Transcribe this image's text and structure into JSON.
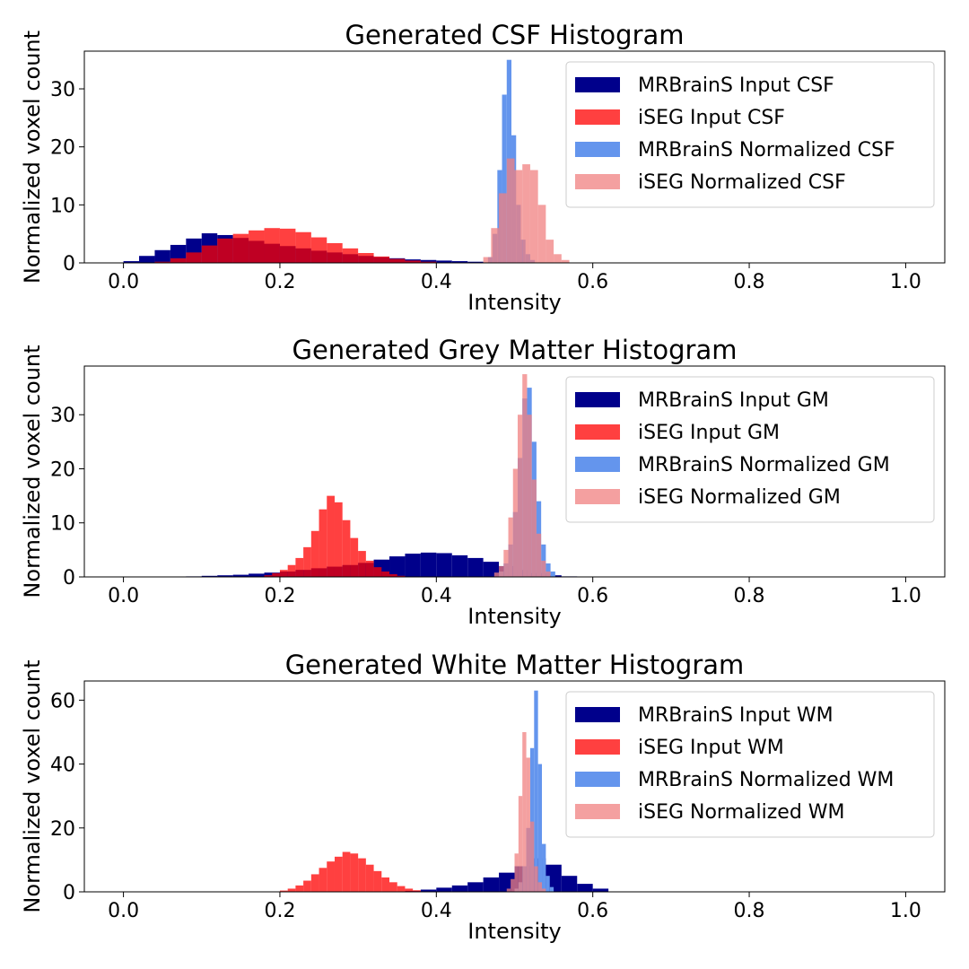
{
  "chart_data": [
    {
      "type": "histogram",
      "title": "Generated CSF Histogram",
      "xlabel": "Intensity",
      "ylabel": "Normalized voxel count",
      "xlim": [
        -0.05,
        1.05
      ],
      "ylim": [
        0,
        36.5
      ],
      "xticks": [
        0.0,
        0.2,
        0.4,
        0.6,
        0.8,
        1.0
      ],
      "xtick_labels": [
        "0.0",
        "0.2",
        "0.4",
        "0.6",
        "0.8",
        "1.0"
      ],
      "yticks": [
        0,
        10,
        20,
        30
      ],
      "ytick_labels": [
        "0",
        "10",
        "20",
        "30"
      ],
      "legend_position": "upper right",
      "grid": false,
      "series": [
        {
          "name": "MRBrainS Input CSF",
          "color": "#00008b",
          "opacity": 1.0,
          "bins": [
            {
              "x": 0.0,
              "y": 0.3
            },
            {
              "x": 0.02,
              "y": 1.2
            },
            {
              "x": 0.04,
              "y": 2.2
            },
            {
              "x": 0.06,
              "y": 3.1
            },
            {
              "x": 0.08,
              "y": 4.2
            },
            {
              "x": 0.1,
              "y": 5.1
            },
            {
              "x": 0.12,
              "y": 4.8
            },
            {
              "x": 0.14,
              "y": 4.3
            },
            {
              "x": 0.16,
              "y": 3.8
            },
            {
              "x": 0.18,
              "y": 3.3
            },
            {
              "x": 0.2,
              "y": 2.9
            },
            {
              "x": 0.22,
              "y": 2.5
            },
            {
              "x": 0.24,
              "y": 2.1
            },
            {
              "x": 0.26,
              "y": 1.8
            },
            {
              "x": 0.28,
              "y": 1.5
            },
            {
              "x": 0.3,
              "y": 1.2
            },
            {
              "x": 0.32,
              "y": 1.0
            },
            {
              "x": 0.34,
              "y": 0.8
            },
            {
              "x": 0.36,
              "y": 0.6
            },
            {
              "x": 0.38,
              "y": 0.5
            },
            {
              "x": 0.4,
              "y": 0.4
            },
            {
              "x": 0.42,
              "y": 0.3
            },
            {
              "x": 0.44,
              "y": 0.2
            }
          ]
        },
        {
          "name": "iSEG Input CSF",
          "color": "#ff0000",
          "opacity": 0.75,
          "bins": [
            {
              "x": 0.04,
              "y": 0.2
            },
            {
              "x": 0.06,
              "y": 0.8
            },
            {
              "x": 0.08,
              "y": 1.8
            },
            {
              "x": 0.1,
              "y": 3.0
            },
            {
              "x": 0.12,
              "y": 4.2
            },
            {
              "x": 0.14,
              "y": 5.0
            },
            {
              "x": 0.16,
              "y": 5.6
            },
            {
              "x": 0.18,
              "y": 6.0
            },
            {
              "x": 0.2,
              "y": 5.9
            },
            {
              "x": 0.22,
              "y": 5.3
            },
            {
              "x": 0.24,
              "y": 4.4
            },
            {
              "x": 0.26,
              "y": 3.4
            },
            {
              "x": 0.28,
              "y": 2.5
            },
            {
              "x": 0.3,
              "y": 1.7
            },
            {
              "x": 0.32,
              "y": 1.1
            },
            {
              "x": 0.34,
              "y": 0.7
            },
            {
              "x": 0.36,
              "y": 0.4
            },
            {
              "x": 0.38,
              "y": 0.2
            }
          ]
        },
        {
          "name": "MRBrainS Normalized CSF",
          "color": "#6495ed",
          "opacity": 1.0,
          "bins": [
            {
              "x": 0.466,
              "y": 1.0
            },
            {
              "x": 0.472,
              "y": 5.0
            },
            {
              "x": 0.478,
              "y": 16.0
            },
            {
              "x": 0.484,
              "y": 29.0
            },
            {
              "x": 0.49,
              "y": 35.0
            },
            {
              "x": 0.496,
              "y": 22.0
            },
            {
              "x": 0.502,
              "y": 10.0
            },
            {
              "x": 0.508,
              "y": 4.0
            },
            {
              "x": 0.514,
              "y": 1.5
            },
            {
              "x": 0.52,
              "y": 0.5
            }
          ]
        },
        {
          "name": "iSEG Normalized CSF",
          "color": "#f08080",
          "opacity": 0.75,
          "bins": [
            {
              "x": 0.46,
              "y": 1.0
            },
            {
              "x": 0.47,
              "y": 6.0
            },
            {
              "x": 0.48,
              "y": 12.0
            },
            {
              "x": 0.49,
              "y": 18.0
            },
            {
              "x": 0.5,
              "y": 16.0
            },
            {
              "x": 0.51,
              "y": 17.0
            },
            {
              "x": 0.52,
              "y": 16.0
            },
            {
              "x": 0.53,
              "y": 10.0
            },
            {
              "x": 0.54,
              "y": 4.0
            },
            {
              "x": 0.55,
              "y": 1.5
            },
            {
              "x": 0.56,
              "y": 0.5
            }
          ]
        }
      ]
    },
    {
      "type": "histogram",
      "title": "Generated Grey Matter Histogram",
      "xlabel": "Intensity",
      "ylabel": "Normalized voxel count",
      "xlim": [
        -0.05,
        1.05
      ],
      "ylim": [
        0,
        39.0
      ],
      "xticks": [
        0.0,
        0.2,
        0.4,
        0.6,
        0.8,
        1.0
      ],
      "xtick_labels": [
        "0.0",
        "0.2",
        "0.4",
        "0.6",
        "0.8",
        "1.0"
      ],
      "yticks": [
        0,
        10,
        20,
        30
      ],
      "ytick_labels": [
        "0",
        "10",
        "20",
        "30"
      ],
      "legend_position": "upper right",
      "grid": false,
      "series": [
        {
          "name": "MRBrainS Input GM",
          "color": "#00008b",
          "opacity": 1.0,
          "bins": [
            {
              "x": 0.08,
              "y": 0.1
            },
            {
              "x": 0.1,
              "y": 0.2
            },
            {
              "x": 0.12,
              "y": 0.3
            },
            {
              "x": 0.14,
              "y": 0.4
            },
            {
              "x": 0.16,
              "y": 0.6
            },
            {
              "x": 0.18,
              "y": 0.8
            },
            {
              "x": 0.2,
              "y": 1.0
            },
            {
              "x": 0.22,
              "y": 1.3
            },
            {
              "x": 0.24,
              "y": 1.6
            },
            {
              "x": 0.26,
              "y": 1.9
            },
            {
              "x": 0.28,
              "y": 2.2
            },
            {
              "x": 0.3,
              "y": 2.6
            },
            {
              "x": 0.32,
              "y": 3.2
            },
            {
              "x": 0.34,
              "y": 3.8
            },
            {
              "x": 0.36,
              "y": 4.3
            },
            {
              "x": 0.38,
              "y": 4.5
            },
            {
              "x": 0.4,
              "y": 4.4
            },
            {
              "x": 0.42,
              "y": 4.0
            },
            {
              "x": 0.44,
              "y": 3.5
            },
            {
              "x": 0.46,
              "y": 2.8
            },
            {
              "x": 0.48,
              "y": 2.0
            },
            {
              "x": 0.5,
              "y": 1.3
            },
            {
              "x": 0.52,
              "y": 0.7
            },
            {
              "x": 0.54,
              "y": 0.3
            },
            {
              "x": 0.56,
              "y": 0.1
            }
          ]
        },
        {
          "name": "iSEG Input GM",
          "color": "#ff0000",
          "opacity": 0.75,
          "bins": [
            {
              "x": 0.18,
              "y": 0.3
            },
            {
              "x": 0.19,
              "y": 0.7
            },
            {
              "x": 0.2,
              "y": 1.3
            },
            {
              "x": 0.21,
              "y": 2.2
            },
            {
              "x": 0.22,
              "y": 3.5
            },
            {
              "x": 0.23,
              "y": 5.5
            },
            {
              "x": 0.24,
              "y": 8.5
            },
            {
              "x": 0.25,
              "y": 12.5
            },
            {
              "x": 0.26,
              "y": 15.0
            },
            {
              "x": 0.27,
              "y": 13.8
            },
            {
              "x": 0.28,
              "y": 10.5
            },
            {
              "x": 0.29,
              "y": 7.2
            },
            {
              "x": 0.3,
              "y": 4.8
            },
            {
              "x": 0.31,
              "y": 3.0
            },
            {
              "x": 0.32,
              "y": 1.8
            },
            {
              "x": 0.33,
              "y": 1.0
            },
            {
              "x": 0.34,
              "y": 0.5
            },
            {
              "x": 0.35,
              "y": 0.2
            }
          ]
        },
        {
          "name": "MRBrainS Normalized GM",
          "color": "#6495ed",
          "opacity": 1.0,
          "bins": [
            {
              "x": 0.48,
              "y": 1.0
            },
            {
              "x": 0.486,
              "y": 2.5
            },
            {
              "x": 0.492,
              "y": 6.0
            },
            {
              "x": 0.498,
              "y": 12.0
            },
            {
              "x": 0.504,
              "y": 22.0
            },
            {
              "x": 0.51,
              "y": 33.0
            },
            {
              "x": 0.516,
              "y": 35.0
            },
            {
              "x": 0.522,
              "y": 25.0
            },
            {
              "x": 0.528,
              "y": 14.0
            },
            {
              "x": 0.534,
              "y": 6.0
            },
            {
              "x": 0.54,
              "y": 2.5
            },
            {
              "x": 0.546,
              "y": 1.0
            }
          ]
        },
        {
          "name": "iSEG Normalized GM",
          "color": "#f08080",
          "opacity": 0.75,
          "bins": [
            {
              "x": 0.474,
              "y": 0.8
            },
            {
              "x": 0.48,
              "y": 2.0
            },
            {
              "x": 0.486,
              "y": 5.0
            },
            {
              "x": 0.492,
              "y": 11.0
            },
            {
              "x": 0.498,
              "y": 20.0
            },
            {
              "x": 0.504,
              "y": 30.0
            },
            {
              "x": 0.51,
              "y": 37.5
            },
            {
              "x": 0.516,
              "y": 30.0
            },
            {
              "x": 0.522,
              "y": 18.0
            },
            {
              "x": 0.528,
              "y": 8.0
            },
            {
              "x": 0.534,
              "y": 3.0
            },
            {
              "x": 0.54,
              "y": 1.0
            }
          ]
        }
      ]
    },
    {
      "type": "histogram",
      "title": "Generated White Matter Histogram",
      "xlabel": "Intensity",
      "ylabel": "Normalized voxel count",
      "xlim": [
        -0.05,
        1.05
      ],
      "ylim": [
        0,
        66.0
      ],
      "xticks": [
        0.0,
        0.2,
        0.4,
        0.6,
        0.8,
        1.0
      ],
      "xtick_labels": [
        "0.0",
        "0.2",
        "0.4",
        "0.6",
        "0.8",
        "1.0"
      ],
      "yticks": [
        0,
        20,
        40,
        60
      ],
      "ytick_labels": [
        "0",
        "20",
        "40",
        "60"
      ],
      "legend_position": "upper right",
      "grid": false,
      "series": [
        {
          "name": "MRBrainS Input WM",
          "color": "#00008b",
          "opacity": 1.0,
          "bins": [
            {
              "x": 0.36,
              "y": 0.3
            },
            {
              "x": 0.38,
              "y": 0.7
            },
            {
              "x": 0.4,
              "y": 1.3
            },
            {
              "x": 0.42,
              "y": 2.0
            },
            {
              "x": 0.44,
              "y": 3.0
            },
            {
              "x": 0.46,
              "y": 4.5
            },
            {
              "x": 0.48,
              "y": 6.0
            },
            {
              "x": 0.5,
              "y": 8.0
            },
            {
              "x": 0.52,
              "y": 10.5
            },
            {
              "x": 0.54,
              "y": 8.5
            },
            {
              "x": 0.56,
              "y": 5.0
            },
            {
              "x": 0.58,
              "y": 2.5
            },
            {
              "x": 0.6,
              "y": 1.0
            }
          ]
        },
        {
          "name": "iSEG Input WM",
          "color": "#ff0000",
          "opacity": 0.75,
          "bins": [
            {
              "x": 0.2,
              "y": 0.4
            },
            {
              "x": 0.21,
              "y": 1.0
            },
            {
              "x": 0.22,
              "y": 2.0
            },
            {
              "x": 0.23,
              "y": 3.5
            },
            {
              "x": 0.24,
              "y": 5.5
            },
            {
              "x": 0.25,
              "y": 7.5
            },
            {
              "x": 0.26,
              "y": 9.5
            },
            {
              "x": 0.27,
              "y": 11.0
            },
            {
              "x": 0.28,
              "y": 12.5
            },
            {
              "x": 0.29,
              "y": 12.0
            },
            {
              "x": 0.3,
              "y": 10.5
            },
            {
              "x": 0.31,
              "y": 8.5
            },
            {
              "x": 0.32,
              "y": 6.5
            },
            {
              "x": 0.33,
              "y": 4.5
            },
            {
              "x": 0.34,
              "y": 3.0
            },
            {
              "x": 0.35,
              "y": 1.8
            },
            {
              "x": 0.36,
              "y": 1.0
            },
            {
              "x": 0.37,
              "y": 0.5
            }
          ]
        },
        {
          "name": "MRBrainS Normalized WM",
          "color": "#6495ed",
          "opacity": 1.0,
          "bins": [
            {
              "x": 0.5,
              "y": 1.0
            },
            {
              "x": 0.505,
              "y": 3.0
            },
            {
              "x": 0.51,
              "y": 8.0
            },
            {
              "x": 0.515,
              "y": 20.0
            },
            {
              "x": 0.52,
              "y": 45.0
            },
            {
              "x": 0.525,
              "y": 63.0
            },
            {
              "x": 0.53,
              "y": 40.0
            },
            {
              "x": 0.535,
              "y": 15.0
            },
            {
              "x": 0.54,
              "y": 5.0
            },
            {
              "x": 0.545,
              "y": 1.5
            }
          ]
        },
        {
          "name": "iSEG Normalized WM",
          "color": "#f08080",
          "opacity": 0.75,
          "bins": [
            {
              "x": 0.49,
              "y": 1.0
            },
            {
              "x": 0.495,
              "y": 4.0
            },
            {
              "x": 0.5,
              "y": 12.0
            },
            {
              "x": 0.505,
              "y": 30.0
            },
            {
              "x": 0.51,
              "y": 50.0
            },
            {
              "x": 0.515,
              "y": 42.0
            },
            {
              "x": 0.52,
              "y": 22.0
            },
            {
              "x": 0.525,
              "y": 8.0
            },
            {
              "x": 0.53,
              "y": 3.0
            },
            {
              "x": 0.535,
              "y": 1.0
            }
          ]
        }
      ]
    }
  ]
}
